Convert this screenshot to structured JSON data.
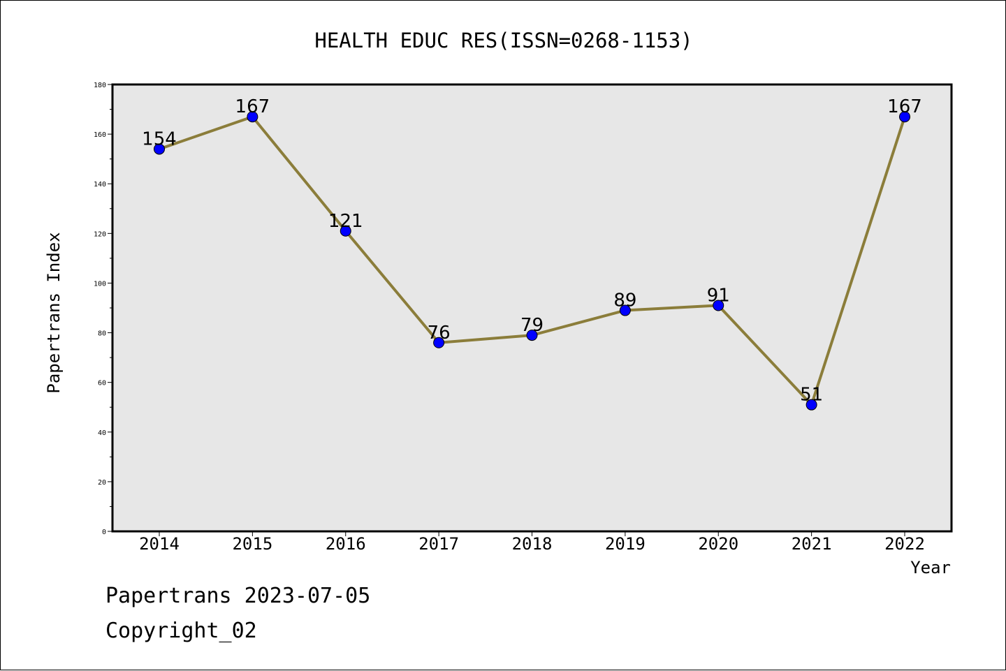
{
  "chart_data": {
    "type": "line",
    "title": "HEALTH EDUC RES(ISSN=0268-1153)",
    "xlabel": "Year",
    "ylabel": "Papertrans Index",
    "categories": [
      "2014",
      "2015",
      "2016",
      "2017",
      "2018",
      "2019",
      "2020",
      "2021",
      "2022"
    ],
    "values": [
      154,
      167,
      121,
      76,
      79,
      89,
      91,
      51,
      167
    ],
    "ylim": [
      0,
      180
    ],
    "yticks": [
      0,
      20,
      40,
      60,
      80,
      100,
      120,
      140,
      160,
      180
    ],
    "grid": false,
    "line_color": "#8B7D3A",
    "marker_color": "#0000FF",
    "plot_background": "#E7E7E7"
  },
  "footer": {
    "line1": "Papertrans 2023-07-05",
    "line2": "Copyright_02"
  }
}
